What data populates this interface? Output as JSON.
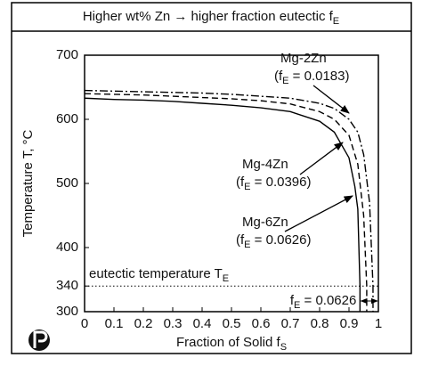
{
  "chart_data": {
    "type": "line",
    "title": [
      "Higher wt% Zn → higher fraction eutectic f",
      "E"
    ],
    "x_label": [
      "Fraction of Solid f",
      "S"
    ],
    "y_label": "Temperature T, °C",
    "xlim": [
      0,
      1
    ],
    "ylim": [
      300,
      700
    ],
    "xticks": [
      0,
      0.1,
      0.2,
      0.3,
      0.4,
      0.5,
      0.6,
      0.7,
      0.8,
      0.9,
      1
    ],
    "yticks": [
      300,
      340,
      400,
      500,
      600,
      700
    ],
    "series": [
      {
        "name": "Mg-2Zn",
        "label": [
          "(f",
          "E",
          " = 0.0183)"
        ],
        "color": "#000000",
        "dash": "dashdot",
        "x": [
          0,
          0.1,
          0.2,
          0.3,
          0.4,
          0.5,
          0.6,
          0.7,
          0.8,
          0.85,
          0.9,
          0.93,
          0.95,
          0.97,
          0.9817,
          0.9817
        ],
        "values": [
          645,
          644,
          643,
          642,
          641,
          639,
          636,
          633,
          625,
          617,
          600,
          580,
          545,
          470,
          340,
          300
        ]
      },
      {
        "name": "Mg-4Zn",
        "label": [
          "(f",
          "E",
          " = 0.0396)"
        ],
        "color": "#000000",
        "dash": "dashed",
        "x": [
          0,
          0.1,
          0.2,
          0.3,
          0.4,
          0.5,
          0.6,
          0.7,
          0.8,
          0.85,
          0.9,
          0.93,
          0.95,
          0.9604,
          0.9604
        ],
        "values": [
          640,
          639,
          638,
          636,
          634,
          632,
          629,
          624,
          612,
          600,
          575,
          530,
          450,
          340,
          300
        ]
      },
      {
        "name": "Mg-6Zn",
        "label": [
          "(f",
          "E",
          " = 0.0626)"
        ],
        "color": "#000000",
        "dash": "solid",
        "x": [
          0,
          0.1,
          0.2,
          0.3,
          0.4,
          0.5,
          0.6,
          0.7,
          0.8,
          0.85,
          0.9,
          0.92,
          0.93,
          0.9374,
          0.9374
        ],
        "values": [
          633,
          631,
          630,
          628,
          625,
          622,
          618,
          612,
          597,
          580,
          540,
          495,
          460,
          340,
          300
        ]
      }
    ],
    "eutectic_line": {
      "value": 340,
      "label": [
        "eutectic temperature T",
        "E"
      ]
    },
    "fraction_marker": [
      "f",
      "E",
      " = 0.0626"
    ]
  }
}
